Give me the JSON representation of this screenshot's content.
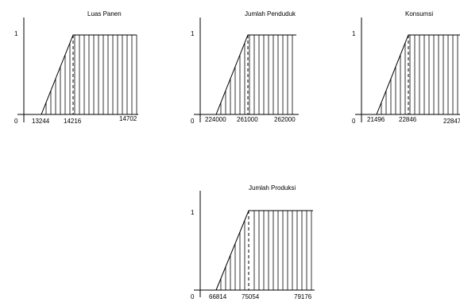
{
  "chart_data": [
    {
      "type": "area",
      "title": "Luas Panen",
      "y_label": "1",
      "origin_label": "0",
      "ramp_start": 13244,
      "ramp_end": 14216,
      "x_max": 14702,
      "ticks": [
        "13244",
        "14216",
        "14702"
      ]
    },
    {
      "type": "area",
      "title": "Jumlah Penduduk",
      "y_label": "1",
      "origin_label": "0",
      "ramp_start": 224000,
      "ramp_end": 261000,
      "x_max": 262000,
      "ticks": [
        "224000",
        "261000",
        "262000"
      ]
    },
    {
      "type": "area",
      "title": "Konsumsi",
      "y_label": "1",
      "origin_label": "0",
      "ramp_start": 21496,
      "ramp_end": 22846,
      "x_max": 22847,
      "ticks": [
        "21496",
        "22846",
        "22847"
      ]
    },
    {
      "type": "area",
      "title": "Jumlah Produksi",
      "y_label": "1",
      "origin_label": "0",
      "ramp_start": 66814,
      "ramp_end": 75054,
      "x_max": 79176,
      "ticks": [
        "66814",
        "75054",
        "79176"
      ]
    }
  ]
}
